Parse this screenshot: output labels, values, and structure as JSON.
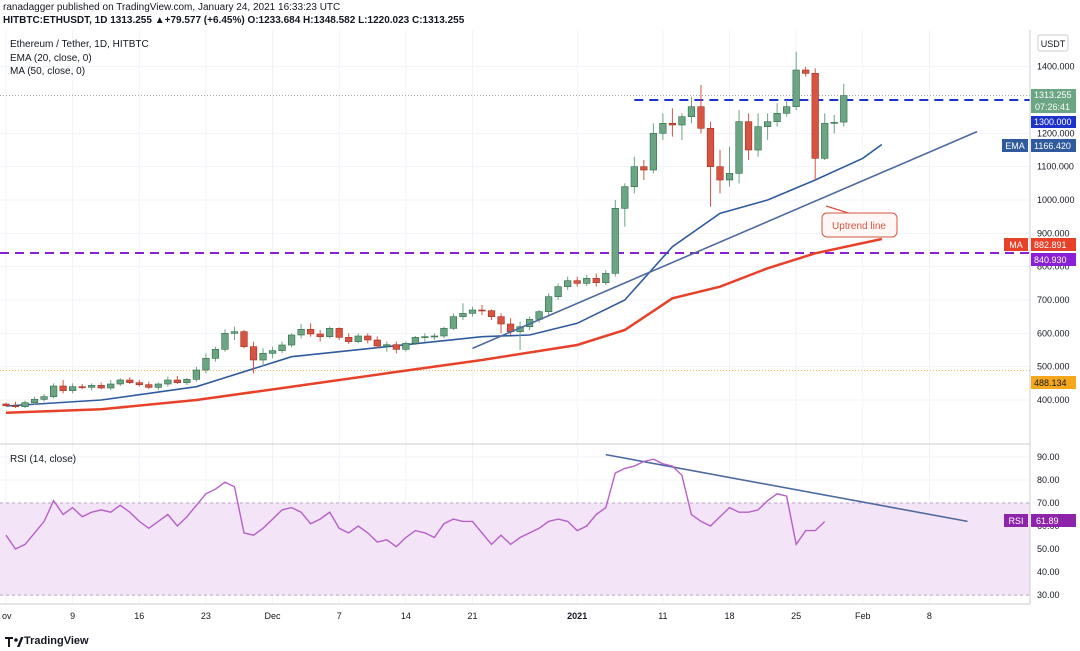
{
  "header": {
    "published_line": "ranadagger published on TradingView.com, January 24, 2021 16:33:23 UTC",
    "symbol_line": "HITBTC:ETHUSDT, 1D  1313.255  ▲+79.577 (+6.45%)  O:1233.684  H:1348.582  L:1220.023  C:1313.255"
  },
  "legend": {
    "title": "Ethereum / Tether, 1D, HITBTC",
    "ema_label": "EMA (20, close, 0)",
    "ma_label": "MA (50, close, 0)",
    "rsi_label": "RSI (14, close)"
  },
  "axis": {
    "currency": "USDT",
    "x_ticks": [
      "ov",
      "9",
      "16",
      "23",
      "Dec",
      "7",
      "14",
      "21",
      "2021",
      "11",
      "18",
      "25",
      "Feb",
      "8"
    ],
    "price_ticks": [
      "1400.000",
      "1200.000",
      "1100.000",
      "1000.000",
      "900.000",
      "800.000",
      "700.000",
      "600.000",
      "500.000",
      "400.000"
    ],
    "rsi_ticks": [
      "90.00",
      "80.00",
      "70.00",
      "60.00",
      "50.00",
      "40.00",
      "30.00"
    ]
  },
  "price_labels": {
    "last_price": "1313.255",
    "countdown": "07:26:41",
    "resistance": "1300.000",
    "ema_name": "EMA",
    "ema_value": "1166.420",
    "ma_name": "MA",
    "ma_value": "882.891",
    "support": "840.930",
    "low_level": "488.134",
    "rsi_name": "RSI",
    "rsi_value": "61.89"
  },
  "annotations": {
    "uptrend_label": "Uptrend line"
  },
  "footer": {
    "logo_text": "TradingView"
  },
  "colors": {
    "up_candle": "#6ba583",
    "down_candle": "#d75442",
    "ema": "#2f5b9e",
    "ma": "#e8412a",
    "dashed_blue": "#1c32c8",
    "dashed_purple": "#8a1fd6",
    "rsi_line": "#b660c8",
    "rsi_band": "#f3e4f8",
    "trendline": "#4e6a9f",
    "annotation": "#d75442"
  },
  "chart_data": {
    "type": "candlestick",
    "symbol": "HITBTC:ETHUSDT",
    "timeframe": "1D",
    "price_range": [
      310,
      1480
    ],
    "rsi_range": [
      27,
      93
    ],
    "ohlc": [
      [
        388,
        392,
        380,
        383
      ],
      [
        383,
        395,
        376,
        380
      ],
      [
        380,
        398,
        376,
        392
      ],
      [
        392,
        410,
        385,
        402
      ],
      [
        402,
        418,
        395,
        410
      ],
      [
        410,
        450,
        405,
        442
      ],
      [
        442,
        460,
        420,
        428
      ],
      [
        428,
        450,
        420,
        440
      ],
      [
        440,
        448,
        432,
        438
      ],
      [
        438,
        450,
        428,
        444
      ],
      [
        444,
        452,
        432,
        436
      ],
      [
        436,
        460,
        430,
        448
      ],
      [
        448,
        466,
        442,
        460
      ],
      [
        460,
        468,
        448,
        452
      ],
      [
        452,
        460,
        440,
        446
      ],
      [
        446,
        455,
        433,
        438
      ],
      [
        438,
        452,
        430,
        448
      ],
      [
        448,
        470,
        440,
        460
      ],
      [
        460,
        472,
        448,
        452
      ],
      [
        452,
        466,
        445,
        462
      ],
      [
        462,
        500,
        455,
        490
      ],
      [
        490,
        540,
        480,
        525
      ],
      [
        525,
        560,
        515,
        552
      ],
      [
        552,
        612,
        545,
        600
      ],
      [
        600,
        620,
        580,
        605
      ],
      [
        605,
        610,
        555,
        560
      ],
      [
        560,
        575,
        480,
        520
      ],
      [
        520,
        555,
        500,
        540
      ],
      [
        540,
        560,
        525,
        548
      ],
      [
        548,
        575,
        540,
        565
      ],
      [
        565,
        600,
        558,
        595
      ],
      [
        595,
        628,
        585,
        612
      ],
      [
        612,
        630,
        590,
        598
      ],
      [
        598,
        610,
        575,
        590
      ],
      [
        590,
        620,
        585,
        615
      ],
      [
        615,
        618,
        580,
        588
      ],
      [
        588,
        600,
        568,
        575
      ],
      [
        575,
        600,
        570,
        592
      ],
      [
        592,
        600,
        570,
        580
      ],
      [
        580,
        590,
        555,
        562
      ],
      [
        562,
        575,
        545,
        566
      ],
      [
        566,
        575,
        540,
        552
      ],
      [
        552,
        575,
        545,
        570
      ],
      [
        570,
        592,
        565,
        588
      ],
      [
        588,
        600,
        575,
        590
      ],
      [
        590,
        600,
        580,
        592
      ],
      [
        592,
        620,
        585,
        615
      ],
      [
        615,
        660,
        610,
        650
      ],
      [
        650,
        690,
        640,
        660
      ],
      [
        660,
        680,
        650,
        670
      ],
      [
        670,
        685,
        655,
        668
      ],
      [
        668,
        672,
        640,
        650
      ],
      [
        650,
        660,
        600,
        628
      ],
      [
        628,
        645,
        595,
        605
      ],
      [
        605,
        635,
        550,
        620
      ],
      [
        620,
        650,
        610,
        642
      ],
      [
        642,
        670,
        632,
        665
      ],
      [
        665,
        720,
        655,
        710
      ],
      [
        710,
        750,
        700,
        740
      ],
      [
        740,
        770,
        730,
        758
      ],
      [
        758,
        770,
        740,
        750
      ],
      [
        750,
        775,
        742,
        765
      ],
      [
        765,
        780,
        740,
        752
      ],
      [
        752,
        790,
        745,
        780
      ],
      [
        780,
        1000,
        770,
        975
      ],
      [
        975,
        1050,
        920,
        1040
      ],
      [
        1040,
        1130,
        1020,
        1100
      ],
      [
        1100,
        1120,
        1060,
        1090
      ],
      [
        1090,
        1230,
        1080,
        1200
      ],
      [
        1200,
        1260,
        1180,
        1230
      ],
      [
        1230,
        1275,
        1190,
        1225
      ],
      [
        1225,
        1260,
        1180,
        1250
      ],
      [
        1250,
        1310,
        1230,
        1280
      ],
      [
        1280,
        1345,
        1200,
        1215
      ],
      [
        1215,
        1235,
        980,
        1100
      ],
      [
        1100,
        1150,
        1020,
        1060
      ],
      [
        1060,
        1160,
        1040,
        1080
      ],
      [
        1080,
        1270,
        1050,
        1235
      ],
      [
        1235,
        1260,
        1120,
        1150
      ],
      [
        1150,
        1260,
        1130,
        1220
      ],
      [
        1220,
        1260,
        1180,
        1235
      ],
      [
        1235,
        1290,
        1220,
        1260
      ],
      [
        1260,
        1300,
        1250,
        1280
      ],
      [
        1280,
        1445,
        1270,
        1390
      ],
      [
        1390,
        1400,
        1370,
        1380
      ],
      [
        1380,
        1395,
        1060,
        1125
      ],
      [
        1125,
        1260,
        1120,
        1230
      ],
      [
        1230,
        1255,
        1200,
        1233
      ],
      [
        1233.684,
        1348.582,
        1220.023,
        1313.255
      ]
    ],
    "ema20": [
      [
        0,
        382
      ],
      [
        10,
        400
      ],
      [
        20,
        440
      ],
      [
        30,
        530
      ],
      [
        40,
        560
      ],
      [
        50,
        590
      ],
      [
        55,
        595
      ],
      [
        60,
        630
      ],
      [
        65,
        700
      ],
      [
        70,
        860
      ],
      [
        75,
        960
      ],
      [
        80,
        1000
      ],
      [
        85,
        1060
      ],
      [
        90,
        1125
      ],
      [
        92,
        1166.42
      ]
    ],
    "ma50": [
      [
        0,
        362
      ],
      [
        10,
        372
      ],
      [
        20,
        400
      ],
      [
        30,
        440
      ],
      [
        40,
        480
      ],
      [
        50,
        520
      ],
      [
        60,
        565
      ],
      [
        65,
        610
      ],
      [
        70,
        705
      ],
      [
        75,
        740
      ],
      [
        80,
        795
      ],
      [
        85,
        840
      ],
      [
        92,
        882.891
      ]
    ],
    "rsi": [
      [
        0,
        56
      ],
      [
        1,
        50
      ],
      [
        2,
        52
      ],
      [
        3,
        57
      ],
      [
        4,
        62
      ],
      [
        5,
        71
      ],
      [
        6,
        65
      ],
      [
        7,
        68
      ],
      [
        8,
        64
      ],
      [
        9,
        66
      ],
      [
        10,
        67
      ],
      [
        11,
        66
      ],
      [
        12,
        69
      ],
      [
        13,
        66
      ],
      [
        14,
        62
      ],
      [
        15,
        59
      ],
      [
        16,
        62
      ],
      [
        17,
        65
      ],
      [
        18,
        60
      ],
      [
        19,
        64
      ],
      [
        20,
        69
      ],
      [
        21,
        74
      ],
      [
        22,
        76
      ],
      [
        23,
        79
      ],
      [
        24,
        77
      ],
      [
        25,
        57
      ],
      [
        26,
        56
      ],
      [
        27,
        59
      ],
      [
        28,
        63
      ],
      [
        29,
        67
      ],
      [
        30,
        68
      ],
      [
        31,
        66
      ],
      [
        32,
        61
      ],
      [
        33,
        63
      ],
      [
        34,
        66
      ],
      [
        35,
        59
      ],
      [
        36,
        57
      ],
      [
        37,
        60
      ],
      [
        38,
        57
      ],
      [
        39,
        53
      ],
      [
        40,
        54
      ],
      [
        41,
        51
      ],
      [
        42,
        55
      ],
      [
        43,
        58
      ],
      [
        44,
        57
      ],
      [
        45,
        55
      ],
      [
        46,
        61
      ],
      [
        47,
        63
      ],
      [
        48,
        62
      ],
      [
        49,
        62
      ],
      [
        50,
        57
      ],
      [
        51,
        52
      ],
      [
        52,
        56
      ],
      [
        53,
        52
      ],
      [
        54,
        55
      ],
      [
        55,
        57
      ],
      [
        56,
        59
      ],
      [
        57,
        62
      ],
      [
        58,
        63
      ],
      [
        59,
        62
      ],
      [
        60,
        58
      ],
      [
        61,
        60
      ],
      [
        62,
        65
      ],
      [
        63,
        68
      ],
      [
        64,
        83
      ],
      [
        65,
        85
      ],
      [
        66,
        86
      ],
      [
        67,
        88
      ],
      [
        68,
        89
      ],
      [
        69,
        87
      ],
      [
        70,
        86
      ],
      [
        71,
        82
      ],
      [
        72,
        65
      ],
      [
        73,
        62
      ],
      [
        74,
        60
      ],
      [
        75,
        64
      ],
      [
        76,
        68
      ],
      [
        77,
        66
      ],
      [
        78,
        66
      ],
      [
        79,
        67
      ],
      [
        80,
        71
      ],
      [
        81,
        74
      ],
      [
        82,
        73
      ],
      [
        83,
        52
      ],
      [
        84,
        58
      ],
      [
        85,
        58
      ],
      [
        86,
        61.89
      ]
    ],
    "levels": {
      "resistance": 1300,
      "support": 840.93,
      "low_level": 488.134,
      "rsi_band": [
        30,
        70
      ]
    },
    "trendlines": [
      {
        "name": "Uptrend line",
        "from": [
          49,
          555
        ],
        "to": [
          102,
          1205
        ]
      }
    ],
    "rsi_trendline": {
      "from": [
        63,
        91
      ],
      "to": [
        101,
        62
      ]
    }
  }
}
